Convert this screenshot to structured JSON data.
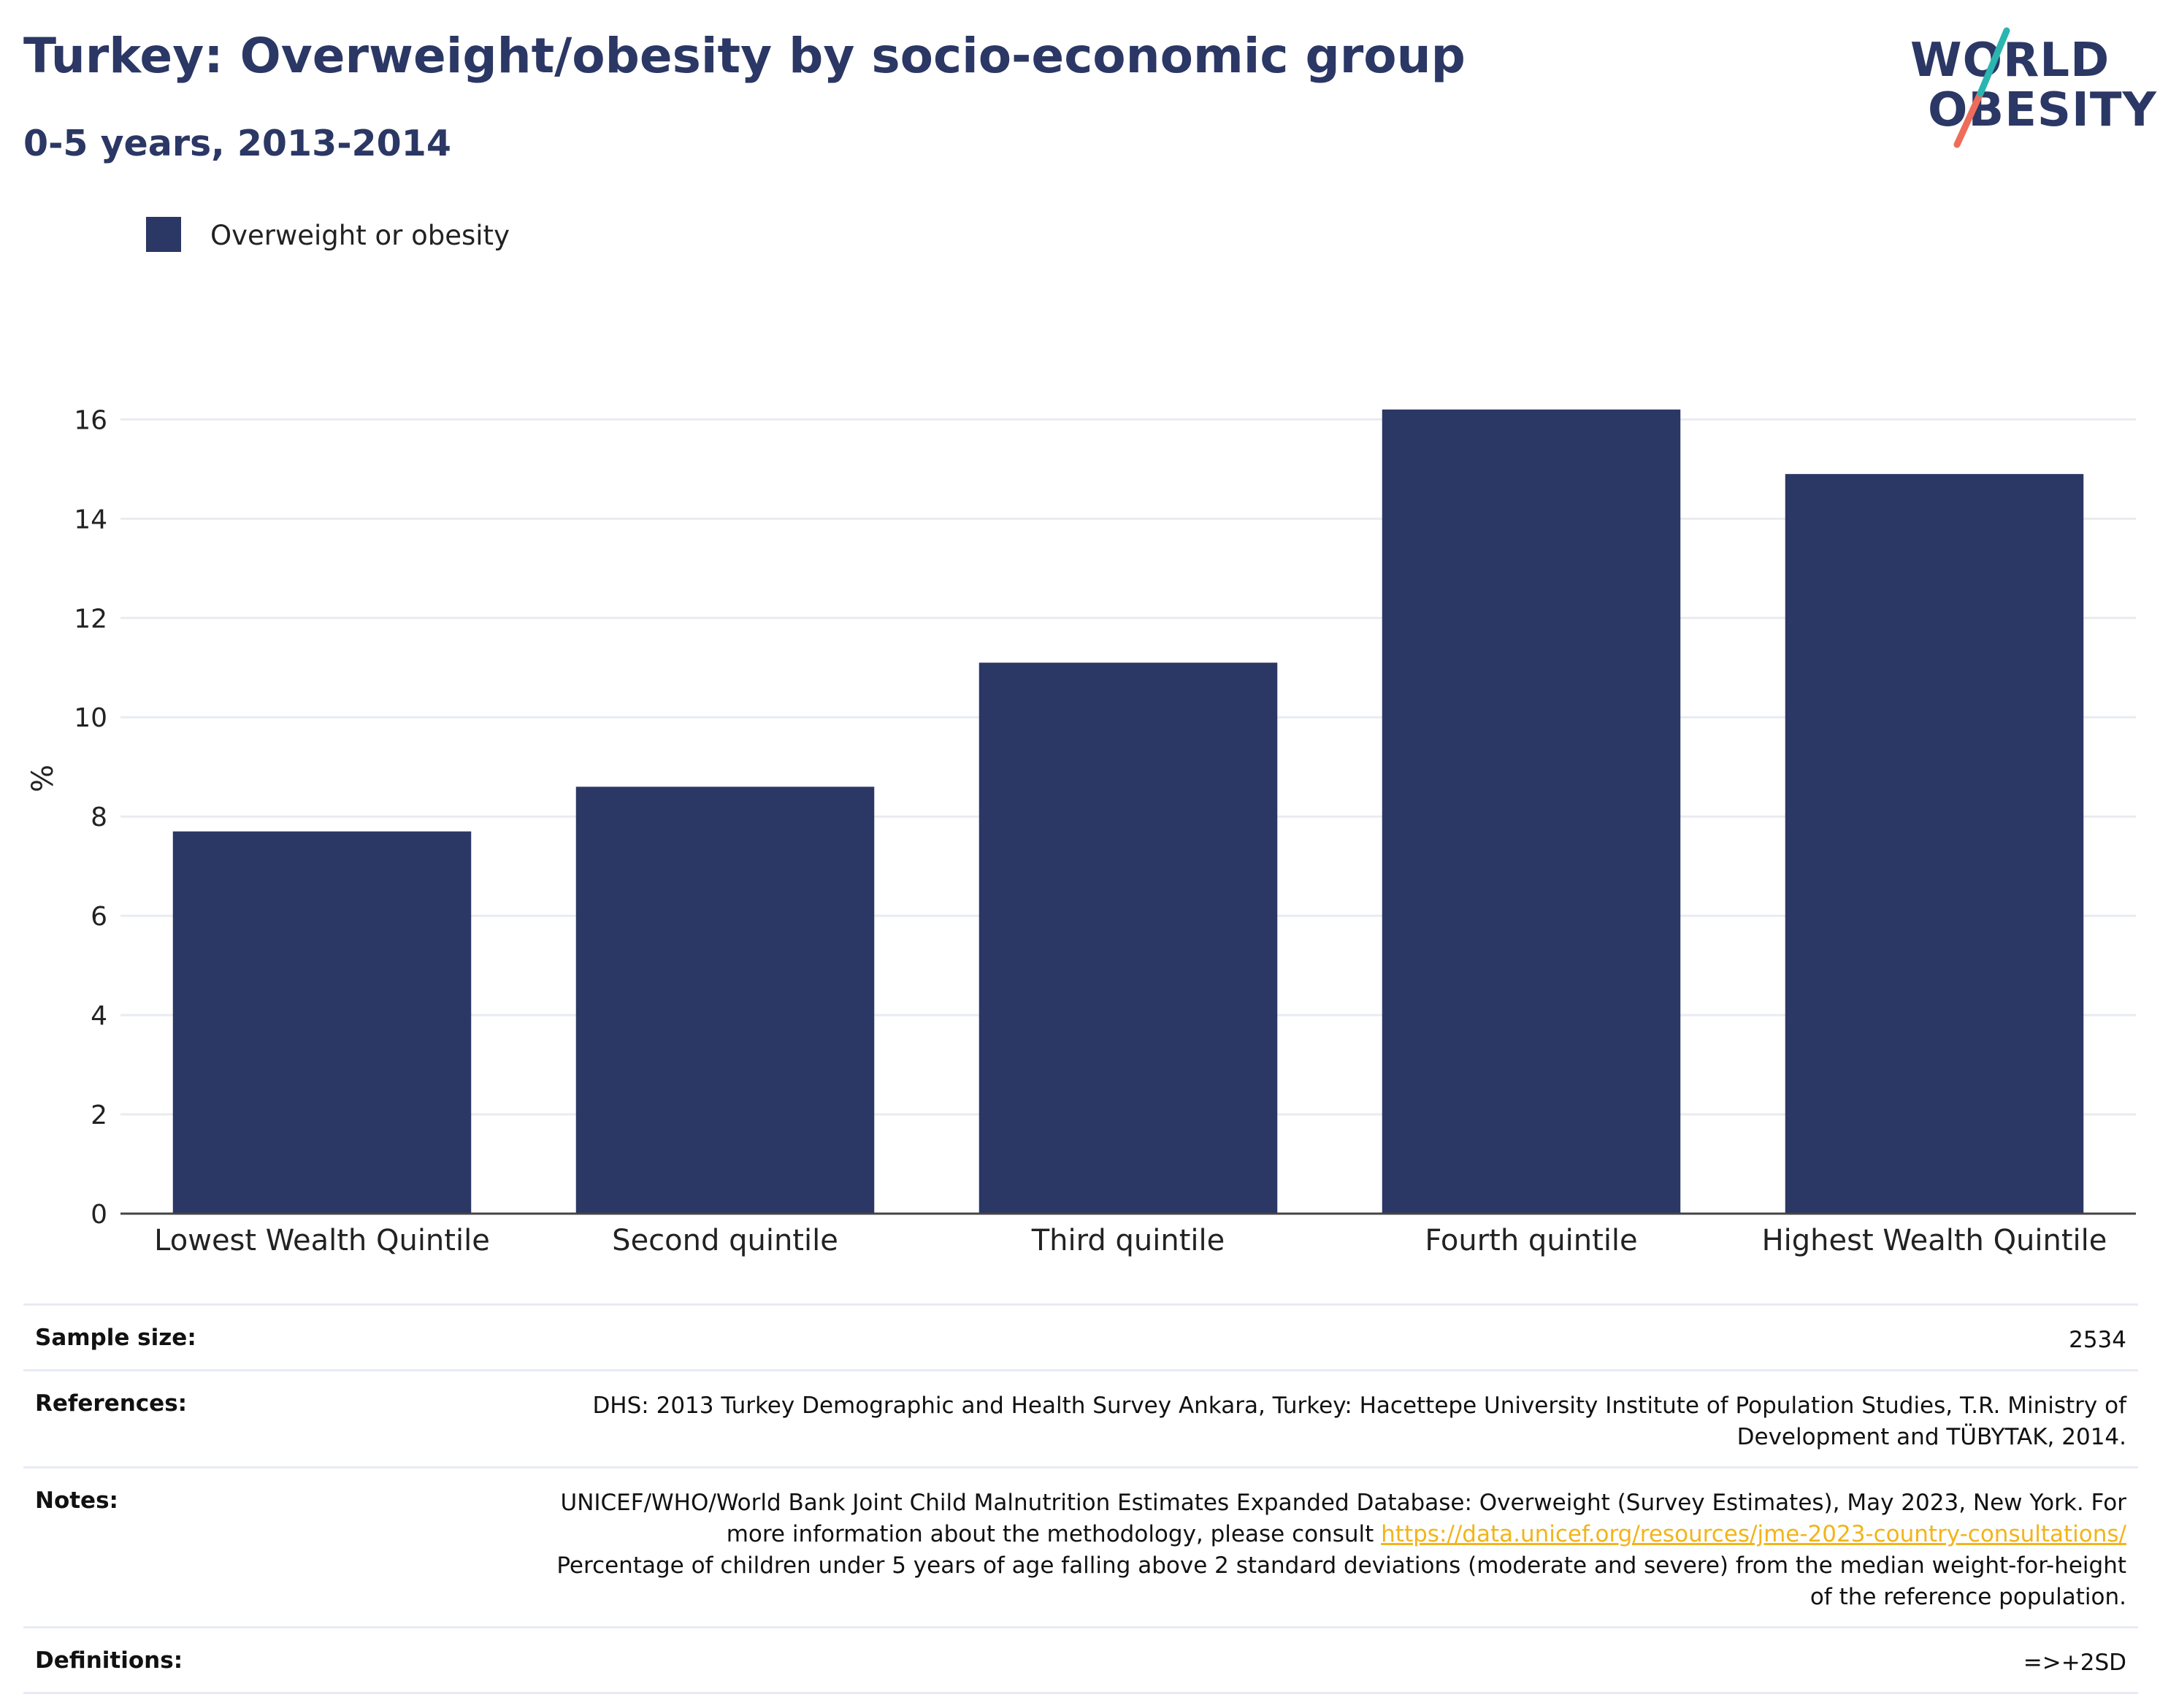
{
  "header": {
    "title": "Turkey: Overweight/obesity by socio-economic group",
    "subtitle": "0-5 years, 2013-2014"
  },
  "logo": {
    "line1": "WORLD",
    "line2": "OBESITY"
  },
  "legend": {
    "label": "Overweight or obesity"
  },
  "colors": {
    "bar": "#2b3764",
    "logo_teal": "#2bb5b0",
    "logo_coral": "#ef6c5a",
    "link": "#f2b41a"
  },
  "chart_data": {
    "type": "bar",
    "categories": [
      "Lowest Wealth Quintile",
      "Second quintile",
      "Third quintile",
      "Fourth quintile",
      "Highest Wealth Quintile"
    ],
    "series": [
      {
        "name": "Overweight or obesity",
        "values": [
          7.7,
          8.6,
          11.1,
          16.2,
          14.9
        ]
      }
    ],
    "ylabel": "%",
    "ylim": [
      0,
      16.8
    ],
    "yticks": [
      0,
      2,
      4,
      6,
      8,
      10,
      12,
      14,
      16
    ],
    "grid": true,
    "legend_position": "top-left"
  },
  "info": {
    "sample_size_label": "Sample size:",
    "sample_size_value": "2534",
    "references_label": "References:",
    "references_value": "DHS: 2013 Turkey Demographic and Health Survey Ankara, Turkey: Hacettepe University Institute of Population Studies, T.R. Ministry of Development and TÜBYTAK, 2014.",
    "notes_label": "Notes:",
    "notes_text_1": "UNICEF/WHO/World Bank Joint Child Malnutrition Estimates Expanded Database: Overweight (Survey Estimates), May 2023, New York. For more information about the methodology, please consult",
    "notes_link": "https://data.unicef.org/resources/jme-2023-country-consultations/",
    "notes_text_2": "Percentage of children under 5 years of age falling above 2 standard deviations (moderate and severe) from the median weight-for-height of the reference population.",
    "definitions_label": "Definitions:",
    "definitions_value": "=>+2SD"
  }
}
